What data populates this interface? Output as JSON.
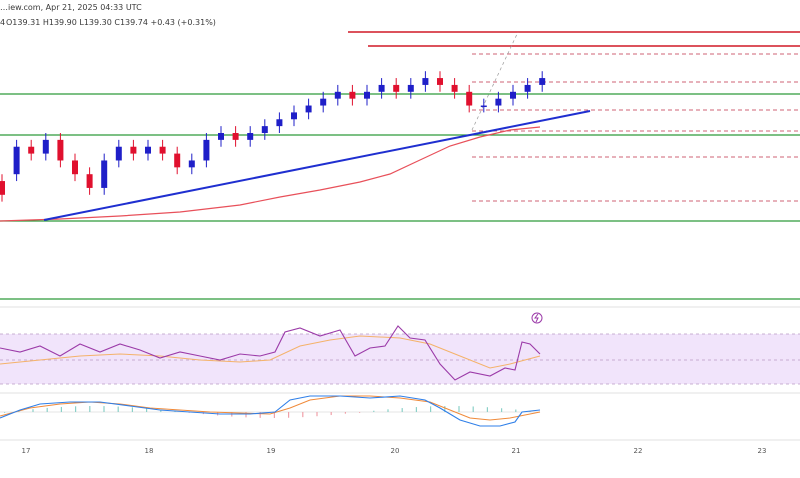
{
  "header": {
    "source": "…iew.com, Apr 21, 2025 04:33 UTC",
    "ohlc": "O139.31  H139.90  L139.30  C139.74  +0.43 (+0.31%)",
    "open_prefix": "4"
  },
  "colors": {
    "up": "#1f1fc8",
    "down": "#e0102e",
    "trendline": "#1f2fd0",
    "ma": "#e8505a",
    "support": "#2e9a3a",
    "resistance": "#d01826",
    "dashed": "#c0304a",
    "rsi": "#9b3aa8",
    "rsi_ma": "#f4b26a",
    "rsi_band": "#f1e4fb",
    "macd": "#2f7fe8",
    "signal": "#f08a3a"
  },
  "x_axis": {
    "labels": [
      "17",
      "18",
      "19",
      "20",
      "21",
      "22",
      "23"
    ]
  },
  "chart_data": {
    "type": "candlestick",
    "series": [
      {
        "name": "price",
        "candles": [
          [
            0,
            128,
            126,
            129,
            125
          ],
          [
            1,
            129,
            133,
            134,
            128
          ],
          [
            2,
            133,
            132,
            134,
            131
          ],
          [
            3,
            132,
            134,
            135,
            131
          ],
          [
            4,
            134,
            131,
            135,
            130
          ],
          [
            5,
            131,
            129,
            132,
            128
          ],
          [
            6,
            129,
            127,
            130,
            126
          ],
          [
            7,
            127,
            131,
            132,
            126
          ],
          [
            8,
            131,
            133,
            134,
            130
          ],
          [
            9,
            133,
            132,
            134,
            131
          ],
          [
            10,
            132,
            133,
            134,
            131
          ],
          [
            11,
            133,
            132,
            134,
            131
          ],
          [
            12,
            132,
            130,
            133,
            129
          ],
          [
            13,
            130,
            131,
            132,
            129
          ],
          [
            14,
            131,
            134,
            135,
            130
          ],
          [
            15,
            134,
            135,
            136,
            133
          ],
          [
            16,
            135,
            134,
            136,
            133
          ],
          [
            17,
            134,
            135,
            136,
            133
          ],
          [
            18,
            135,
            136,
            137,
            134
          ],
          [
            19,
            136,
            137,
            138,
            135
          ],
          [
            20,
            137,
            138,
            139,
            136
          ],
          [
            21,
            138,
            139,
            140,
            137
          ],
          [
            22,
            139,
            140,
            141,
            138
          ],
          [
            23,
            140,
            141,
            142,
            139
          ],
          [
            24,
            141,
            140,
            142,
            139
          ],
          [
            25,
            140,
            141,
            142,
            139
          ],
          [
            26,
            141,
            142,
            143,
            140
          ],
          [
            27,
            142,
            141,
            143,
            140
          ],
          [
            28,
            141,
            142,
            143,
            140
          ],
          [
            29,
            142,
            143,
            144,
            141
          ],
          [
            30,
            143,
            142,
            144,
            141
          ],
          [
            31,
            142,
            141,
            143,
            140
          ],
          [
            32,
            141,
            139,
            142,
            138
          ],
          [
            33,
            139,
            139,
            140,
            138
          ],
          [
            34,
            139,
            140,
            141,
            138
          ],
          [
            35,
            140,
            141,
            142,
            139
          ],
          [
            36,
            141,
            142,
            143,
            140
          ],
          [
            37,
            142,
            143,
            144,
            141
          ]
        ]
      }
    ]
  }
}
